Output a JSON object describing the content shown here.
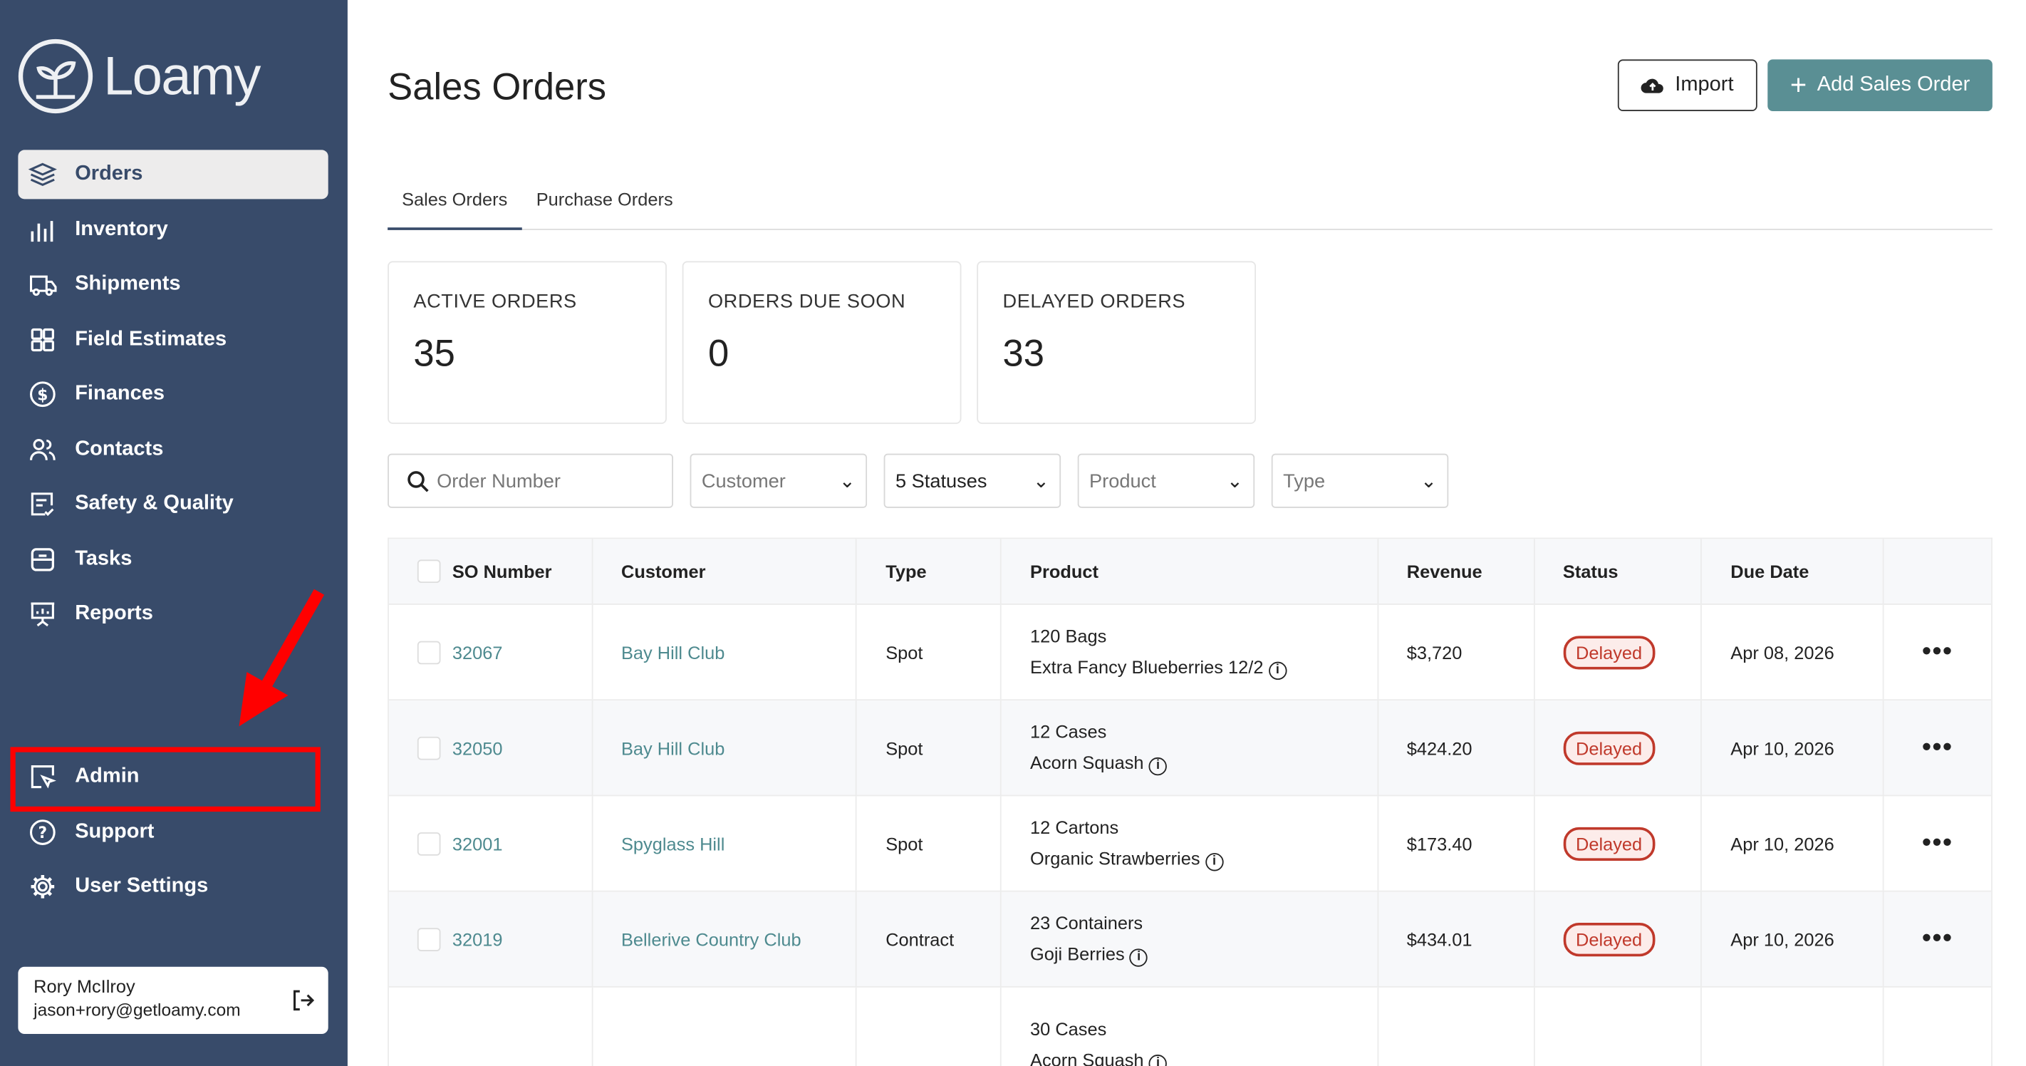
{
  "app": {
    "name": "Loamy"
  },
  "sidebar": {
    "items": [
      {
        "label": "Orders",
        "icon": "layers-icon"
      },
      {
        "label": "Inventory",
        "icon": "bar-chart-icon"
      },
      {
        "label": "Shipments",
        "icon": "truck-icon"
      },
      {
        "label": "Field Estimates",
        "icon": "grid-icon"
      },
      {
        "label": "Finances",
        "icon": "dollar-circle-icon"
      },
      {
        "label": "Contacts",
        "icon": "users-icon"
      },
      {
        "label": "Safety & Quality",
        "icon": "checklist-icon"
      },
      {
        "label": "Tasks",
        "icon": "tasks-icon"
      },
      {
        "label": "Reports",
        "icon": "presentation-icon"
      }
    ],
    "bottom_items": [
      {
        "label": "Admin",
        "icon": "admin-icon"
      },
      {
        "label": "Support",
        "icon": "help-circle-icon"
      },
      {
        "label": "User Settings",
        "icon": "gear-icon"
      }
    ],
    "user": {
      "name": "Rory McIlroy",
      "email": "jason+rory@getloamy.com"
    }
  },
  "header": {
    "title": "Sales Orders",
    "import_label": "Import",
    "add_label": "Add Sales Order",
    "add_color": "#5a8f94"
  },
  "tabs": [
    "Sales Orders",
    "Purchase Orders"
  ],
  "stats": [
    {
      "label": "ACTIVE ORDERS",
      "value": "35"
    },
    {
      "label": "ORDERS DUE SOON",
      "value": "0"
    },
    {
      "label": "DELAYED ORDERS",
      "value": "33"
    }
  ],
  "filters": {
    "search_placeholder": "Order Number",
    "customer": "Customer",
    "statuses": "5 Statuses",
    "product": "Product",
    "type": "Type"
  },
  "table": {
    "columns": [
      "SO Number",
      "Customer",
      "Type",
      "Product",
      "Revenue",
      "Status",
      "Due Date"
    ],
    "rows": [
      {
        "so": "32067",
        "customer": "Bay Hill Club",
        "type": "Spot",
        "qty": "120 Bags",
        "product": "Extra Fancy Blueberries 12/2",
        "revenue": "$3,720",
        "status": "Delayed",
        "due": "Apr 08, 2026"
      },
      {
        "so": "32050",
        "customer": "Bay Hill Club",
        "type": "Spot",
        "qty": "12 Cases",
        "product": "Acorn Squash",
        "revenue": "$424.20",
        "status": "Delayed",
        "due": "Apr 10, 2026"
      },
      {
        "so": "32001",
        "customer": "Spyglass Hill",
        "type": "Spot",
        "qty": "12 Cartons",
        "product": "Organic Strawberries",
        "revenue": "$173.40",
        "status": "Delayed",
        "due": "Apr 10, 2026"
      },
      {
        "so": "32019",
        "customer": "Bellerive Country Club",
        "type": "Contract",
        "qty": "23 Containers",
        "product": "Goji Berries",
        "revenue": "$434.01",
        "status": "Delayed",
        "due": "Apr 10, 2026"
      },
      {
        "so": "",
        "customer": "",
        "type": "",
        "qty": "30 Cases",
        "product": "Acorn Squash",
        "revenue": "",
        "status": "",
        "due": ""
      }
    ]
  }
}
